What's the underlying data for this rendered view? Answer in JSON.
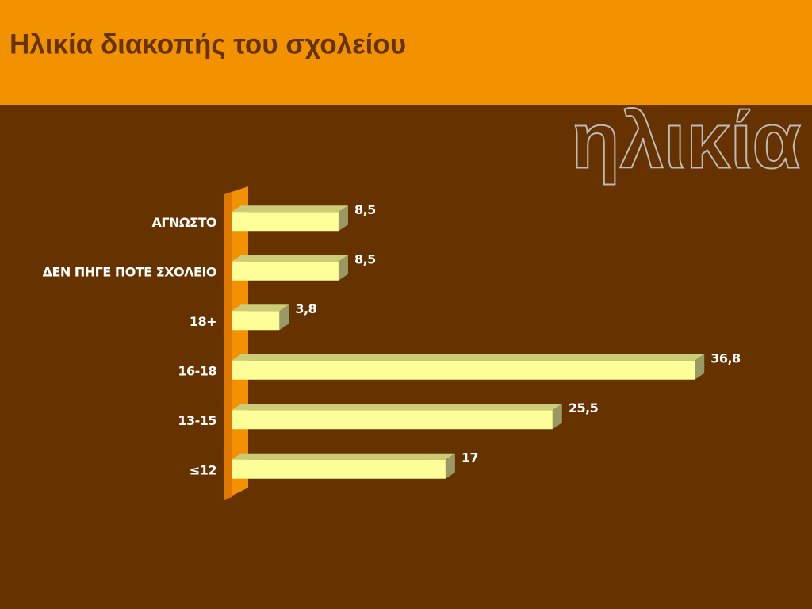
{
  "chart_data": {
    "type": "bar",
    "orientation": "horizontal",
    "title": "Ηλικία διακοπής του σχολείου",
    "annotation": "ηλικία",
    "categories": [
      "ΑΓΝΩΣΤΟ",
      "ΔΕΝ ΠΗΓΕ ΠΟΤΕ ΣΧΟΛΕΙΟ",
      "18+",
      "16-18",
      "13-15",
      "≤12"
    ],
    "values": [
      8.5,
      8.5,
      3.8,
      36.8,
      25.5,
      17
    ],
    "value_labels": [
      "8,5",
      "8,5",
      "3,8",
      "36,8",
      "25,5",
      "17"
    ],
    "color": "#ffff99",
    "xlim": [
      0,
      40
    ]
  }
}
